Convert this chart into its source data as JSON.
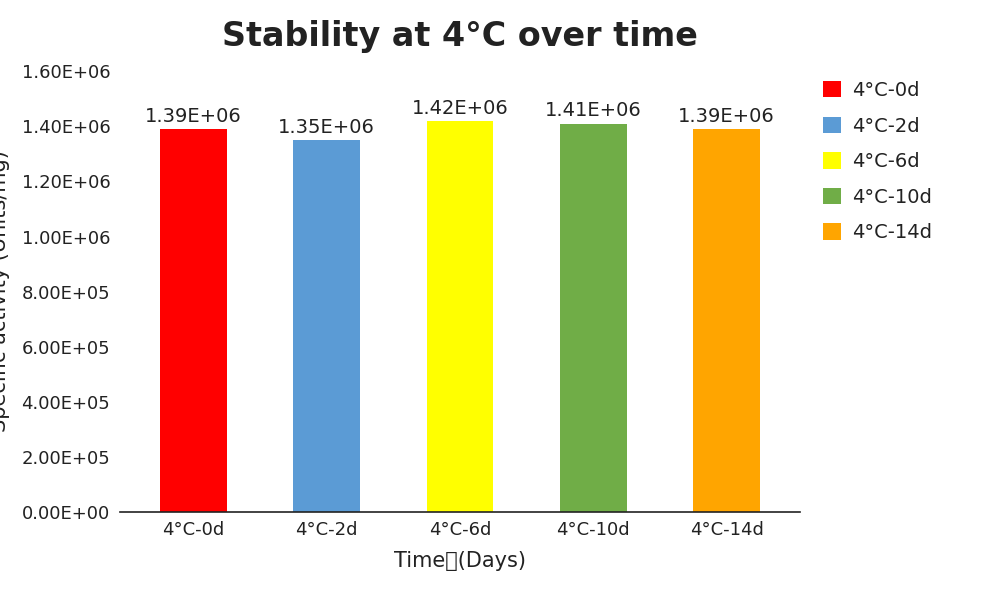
{
  "categories": [
    "4°C-0d",
    "4°C-2d",
    "4°C-6d",
    "4°C-10d",
    "4°C-14d"
  ],
  "values": [
    1390000,
    1350000,
    1420000,
    1410000,
    1390000
  ],
  "bar_labels": [
    "1.39E+06",
    "1.35E+06",
    "1.42E+06",
    "1.41E+06",
    "1.39E+06"
  ],
  "bar_colors": [
    "#FF0000",
    "#5B9BD5",
    "#FFFF00",
    "#70AD47",
    "#FFA500"
  ],
  "legend_labels": [
    "4°C-0d",
    "4°C-2d",
    "4°C-6d",
    "4°C-10d",
    "4°C-14d"
  ],
  "title": "Stability at 4°C over time",
  "xlabel": "Time　(Days)",
  "ylim": [
    0,
    1600000
  ],
  "yticks": [
    0,
    200000,
    400000,
    600000,
    800000,
    1000000,
    1200000,
    1400000,
    1600000
  ],
  "ytick_labels": [
    "0.00E+00",
    "2.00E+05",
    "4.00E+05",
    "6.00E+05",
    "8.00E+05",
    "1.00E+06",
    "1.20E+06",
    "1.40E+06",
    "1.60E+06"
  ],
  "title_fontsize": 24,
  "axis_label_fontsize": 15,
  "tick_label_fontsize": 13,
  "bar_label_fontsize": 14,
  "legend_fontsize": 14,
  "background_color": "#FFFFFF"
}
